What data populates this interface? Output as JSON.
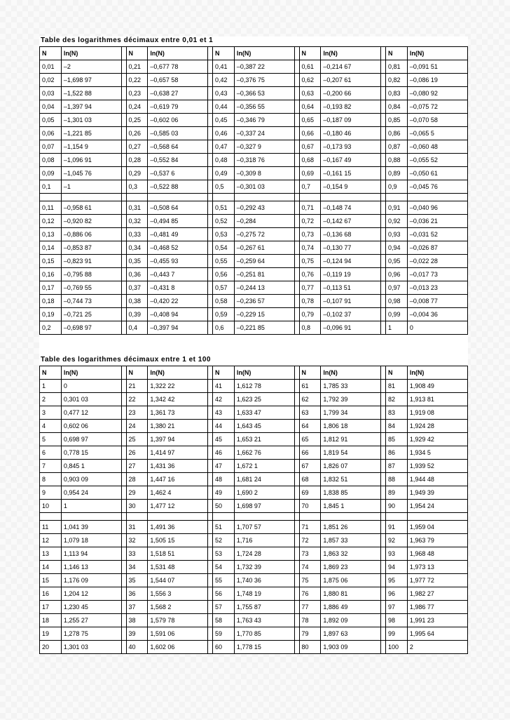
{
  "table1": {
    "title": "Table des logarithmes décimaux entre 0,01 et 1",
    "headers": [
      "N",
      "ln(N)"
    ],
    "cols": [
      {
        "n": [
          "0,01",
          "0,02",
          "0,03",
          "0,04",
          "0,05",
          "0,06",
          "0,07",
          "0,08",
          "0,09",
          "0,1",
          "",
          "0,11",
          "0,12",
          "0,13",
          "0,14",
          "0,15",
          "0,16",
          "0,17",
          "0,18",
          "0,19",
          "0,2"
        ],
        "v": [
          "–2",
          "–1,698 97",
          "–1,522 88",
          "–1,397 94",
          "–1,301 03",
          "–1,221 85",
          "–1,154 9",
          "–1,096 91",
          "–1,045 76",
          "–1",
          "",
          "–0,958 61",
          "–0,920 82",
          "–0,886 06",
          "–0,853 87",
          "–0,823 91",
          "–0,795 88",
          "–0,769 55",
          "–0,744 73",
          "–0,721 25",
          "–0,698 97"
        ]
      },
      {
        "n": [
          "0,21",
          "0,22",
          "0,23",
          "0,24",
          "0,25",
          "0,26",
          "0,27",
          "0,28",
          "0,29",
          "0,3",
          "",
          "0,31",
          "0,32",
          "0,33",
          "0,34",
          "0,35",
          "0,36",
          "0,37",
          "0,38",
          "0,39",
          "0,4"
        ],
        "v": [
          "–0,677 78",
          "–0,657 58",
          "–0,638 27",
          "–0,619 79",
          "–0,602 06",
          "–0,585 03",
          "–0,568 64",
          "–0,552 84",
          "–0,537 6",
          "–0,522 88",
          "",
          "–0,508 64",
          "–0,494 85",
          "–0,481 49",
          "–0,468 52",
          "–0,455 93",
          "–0,443 7",
          "–0,431 8",
          "–0,420 22",
          "–0,408 94",
          "–0,397 94"
        ]
      },
      {
        "n": [
          "0,41",
          "0,42",
          "0,43",
          "0,44",
          "0,45",
          "0,46",
          "0,47",
          "0,48",
          "0,49",
          "0,5",
          "",
          "0,51",
          "0,52",
          "0,53",
          "0,54",
          "0,55",
          "0,56",
          "0,57",
          "0,58",
          "0,59",
          "0,6"
        ],
        "v": [
          "–0,387 22",
          "–0,376 75",
          "–0,366 53",
          "–0,356 55",
          "–0,346 79",
          "–0,337 24",
          "–0,327 9",
          "–0,318 76",
          "–0,309 8",
          "–0,301 03",
          "",
          "–0,292 43",
          "–0,284",
          "–0,275 72",
          "–0,267 61",
          "–0,259 64",
          "–0,251 81",
          "–0,244 13",
          "–0,236 57",
          "–0,229 15",
          "–0,221 85"
        ]
      },
      {
        "n": [
          "0,61",
          "0,62",
          "0,63",
          "0,64",
          "0,65",
          "0,66",
          "0,67",
          "0,68",
          "0,69",
          "0,7",
          "",
          "0,71",
          "0,72",
          "0,73",
          "0,74",
          "0,75",
          "0,76",
          "0,77",
          "0,78",
          "0,79",
          "0,8"
        ],
        "v": [
          "–0,214 67",
          "–0,207 61",
          "–0,200 66",
          "–0,193 82",
          "–0,187 09",
          "–0,180 46",
          "–0,173 93",
          "–0,167 49",
          "–0,161 15",
          "–0,154 9",
          "",
          "–0,148 74",
          "–0,142 67",
          "–0,136 68",
          "–0,130 77",
          "–0,124 94",
          "–0,119 19",
          "–0,113 51",
          "–0,107 91",
          "–0,102 37",
          "–0,096 91"
        ]
      },
      {
        "n": [
          "0,81",
          "0,82",
          "0,83",
          "0,84",
          "0,85",
          "0,86",
          "0,87",
          "0,88",
          "0,89",
          "0,9",
          "",
          "0,91",
          "0,92",
          "0,93",
          "0,94",
          "0,95",
          "0,96",
          "0,97",
          "0,98",
          "0,99",
          "1"
        ],
        "v": [
          "–0,091 51",
          "–0,086 19",
          "–0,080 92",
          "–0,075 72",
          "–0,070 58",
          "–0,065 5",
          "–0,060 48",
          "–0,055 52",
          "–0,050 61",
          "–0,045 76",
          "",
          "–0,040 96",
          "–0,036 21",
          "–0,031 52",
          "–0,026 87",
          "–0,022 28",
          "–0,017 73",
          "–0,013 23",
          "–0,008 77",
          "–0,004 36",
          "0"
        ]
      }
    ]
  },
  "table2": {
    "title": "Table des logarithmes décimaux entre 1 et 100",
    "headers": [
      "N",
      "ln(N)"
    ],
    "cols": [
      {
        "n": [
          "1",
          "2",
          "3",
          "4",
          "5",
          "6",
          "7",
          "8",
          "9",
          "10",
          "",
          "11",
          "12",
          "13",
          "14",
          "15",
          "16",
          "17",
          "18",
          "19",
          "20"
        ],
        "v": [
          "0",
          "0,301 03",
          "0,477 12",
          "0,602 06",
          "0,698 97",
          "0,778 15",
          "0,845 1",
          "0,903 09",
          "0,954 24",
          "1",
          "",
          "1,041 39",
          "1,079 18",
          "1,113 94",
          "1,146 13",
          "1,176 09",
          "1,204 12",
          "1,230 45",
          "1,255 27",
          "1,278 75",
          "1,301 03"
        ]
      },
      {
        "n": [
          "21",
          "22",
          "23",
          "24",
          "25",
          "26",
          "27",
          "28",
          "29",
          "30",
          "",
          "31",
          "32",
          "33",
          "34",
          "35",
          "36",
          "37",
          "38",
          "39",
          "40"
        ],
        "v": [
          "1,322 22",
          "1,342 42",
          "1,361 73",
          "1,380 21",
          "1,397 94",
          "1,414 97",
          "1,431 36",
          "1,447 16",
          "1,462 4",
          "1,477 12",
          "",
          "1,491 36",
          "1,505 15",
          "1,518 51",
          "1,531 48",
          "1,544 07",
          "1,556 3",
          "1,568 2",
          "1,579 78",
          "1,591 06",
          "1,602 06"
        ]
      },
      {
        "n": [
          "41",
          "42",
          "43",
          "44",
          "45",
          "46",
          "47",
          "48",
          "49",
          "50",
          "",
          "51",
          "52",
          "53",
          "54",
          "55",
          "56",
          "57",
          "58",
          "59",
          "60"
        ],
        "v": [
          "1,612 78",
          "1,623 25",
          "1,633 47",
          "1,643 45",
          "1,653 21",
          "1,662 76",
          "1,672 1",
          "1,681 24",
          "1,690 2",
          "1,698 97",
          "",
          "1,707 57",
          "1,716",
          "1,724 28",
          "1,732 39",
          "1,740 36",
          "1,748 19",
          "1,755 87",
          "1,763 43",
          "1,770 85",
          "1,778 15"
        ]
      },
      {
        "n": [
          "61",
          "62",
          "63",
          "64",
          "65",
          "66",
          "67",
          "68",
          "69",
          "70",
          "",
          "71",
          "72",
          "73",
          "74",
          "75",
          "76",
          "77",
          "78",
          "79",
          "80"
        ],
        "v": [
          "1,785 33",
          "1,792 39",
          "1,799 34",
          "1,806 18",
          "1,812 91",
          "1,819 54",
          "1,826 07",
          "1,832 51",
          "1,838 85",
          "1,845 1",
          "",
          "1,851 26",
          "1,857 33",
          "1,863 32",
          "1,869 23",
          "1,875 06",
          "1,880 81",
          "1,886 49",
          "1,892 09",
          "1,897 63",
          "1,903 09"
        ]
      },
      {
        "n": [
          "81",
          "82",
          "83",
          "84",
          "85",
          "86",
          "87",
          "88",
          "89",
          "90",
          "",
          "91",
          "92",
          "93",
          "94",
          "95",
          "96",
          "97",
          "98",
          "99",
          "100"
        ],
        "v": [
          "1,908 49",
          "1,913 81",
          "1,919 08",
          "1,924 28",
          "1,929 42",
          "1,934 5",
          "1,939 52",
          "1,944 48",
          "1,949 39",
          "1,954 24",
          "",
          "1,959 04",
          "1,963 79",
          "1,968 48",
          "1,973 13",
          "1,977 72",
          "1,982 27",
          "1,986 77",
          "1,991 23",
          "1,995 64",
          "2"
        ]
      }
    ]
  }
}
